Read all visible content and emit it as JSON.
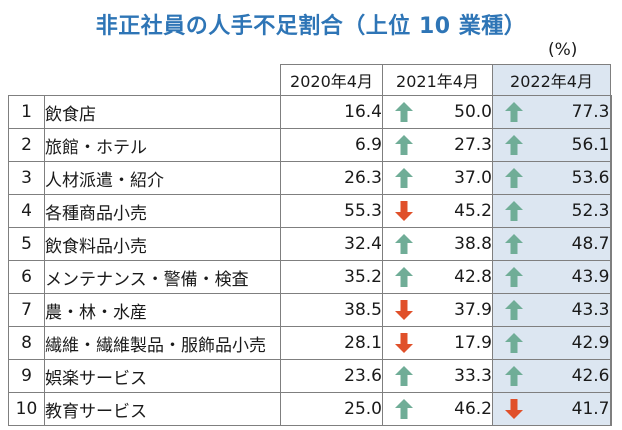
{
  "title": "非正社員の人手不足割合（上位 10 業種）",
  "unit": "(%)",
  "chart_data": {
    "type": "table",
    "columns": [
      "2020年4月",
      "2021年4月",
      "2022年4月"
    ],
    "rows": [
      {
        "rank": "1",
        "industry": "飲食店",
        "y2020": "16.4",
        "y2021": "50.0",
        "y2021_trend": "up",
        "y2022": "77.3",
        "y2022_trend": "up"
      },
      {
        "rank": "2",
        "industry": "旅館・ホテル",
        "y2020": "6.9",
        "y2021": "27.3",
        "y2021_trend": "up",
        "y2022": "56.1",
        "y2022_trend": "up"
      },
      {
        "rank": "3",
        "industry": "人材派遣・紹介",
        "y2020": "26.3",
        "y2021": "37.0",
        "y2021_trend": "up",
        "y2022": "53.6",
        "y2022_trend": "up"
      },
      {
        "rank": "4",
        "industry": "各種商品小売",
        "y2020": "55.3",
        "y2021": "45.2",
        "y2021_trend": "down",
        "y2022": "52.3",
        "y2022_trend": "up"
      },
      {
        "rank": "5",
        "industry": "飲食料品小売",
        "y2020": "32.4",
        "y2021": "38.8",
        "y2021_trend": "up",
        "y2022": "48.7",
        "y2022_trend": "up"
      },
      {
        "rank": "6",
        "industry": "メンテナンス・警備・検査",
        "y2020": "35.2",
        "y2021": "42.8",
        "y2021_trend": "up",
        "y2022": "43.9",
        "y2022_trend": "up"
      },
      {
        "rank": "7",
        "industry": "農・林・水産",
        "y2020": "38.5",
        "y2021": "37.9",
        "y2021_trend": "down",
        "y2022": "43.3",
        "y2022_trend": "up"
      },
      {
        "rank": "8",
        "industry": "繊維・繊維製品・服飾品小売",
        "y2020": "28.1",
        "y2021": "17.9",
        "y2021_trend": "down",
        "y2022": "42.9",
        "y2022_trend": "up"
      },
      {
        "rank": "9",
        "industry": "娯楽サービス",
        "y2020": "23.6",
        "y2021": "33.3",
        "y2021_trend": "up",
        "y2022": "42.6",
        "y2022_trend": "up"
      },
      {
        "rank": "10",
        "industry": "教育サービス",
        "y2020": "25.0",
        "y2021": "46.2",
        "y2021_trend": "up",
        "y2022": "41.7",
        "y2022_trend": "down"
      }
    ]
  },
  "colors": {
    "title": "#2e75b6",
    "up_arrow": "#70ad97",
    "down_arrow": "#e0502a",
    "highlight": "#dce6f1"
  },
  "icons": {
    "up": "up-arrow-icon",
    "down": "down-arrow-icon"
  }
}
